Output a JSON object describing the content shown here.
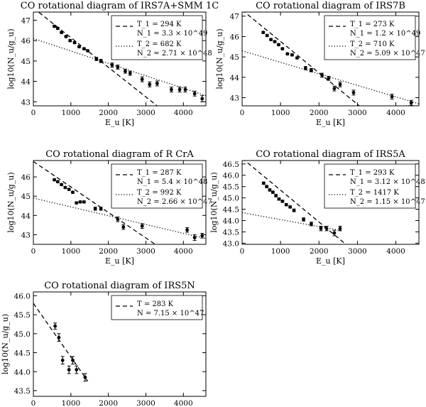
{
  "chart_data": [
    {
      "type": "scatter",
      "title": "CO rotational diagram of IRS7A+SMM 1C",
      "xlabel": "E_u [K]",
      "ylabel": "log10(N_u/g_u)",
      "xlim": [
        0,
        4600
      ],
      "ylim": [
        42.8,
        47.4
      ],
      "xticks": [
        0,
        1000,
        2000,
        3000,
        4000
      ],
      "yticks": [
        43,
        44,
        45,
        46,
        47
      ],
      "legend": [
        {
          "style": "dashed",
          "temp": "T_1 = 294 K",
          "N": "N_1 = 3.3 × 10^49"
        },
        {
          "style": "dotted",
          "temp": "T_2 = 682 K",
          "N": "N_2 = 2.71 × 10^48"
        }
      ],
      "fits": [
        {
          "style": "dashed",
          "x": [
            0,
            3300
          ],
          "y": [
            47.6,
            42.8
          ]
        },
        {
          "style": "dotted",
          "x": [
            0,
            4600
          ],
          "y": [
            46.1,
            43.3
          ]
        }
      ],
      "points": [
        {
          "x": 560,
          "y": 46.7,
          "err": 0.05
        },
        {
          "x": 650,
          "y": 46.6,
          "err": 0.05
        },
        {
          "x": 750,
          "y": 46.4,
          "err": 0.05
        },
        {
          "x": 870,
          "y": 46.2,
          "err": 0.05
        },
        {
          "x": 980,
          "y": 46.0,
          "err": 0.05
        },
        {
          "x": 1100,
          "y": 45.9,
          "err": 0.05
        },
        {
          "x": 1220,
          "y": 45.7,
          "err": 0.05
        },
        {
          "x": 1350,
          "y": 45.6,
          "err": 0.05
        },
        {
          "x": 1450,
          "y": 45.5,
          "err": 0.05
        },
        {
          "x": 1680,
          "y": 45.1,
          "err": 0.08
        },
        {
          "x": 1800,
          "y": 45.0,
          "err": 0.08
        },
        {
          "x": 2100,
          "y": 44.8,
          "err": 0.1
        },
        {
          "x": 2250,
          "y": 44.7,
          "err": 0.1
        },
        {
          "x": 2450,
          "y": 44.5,
          "err": 0.1
        },
        {
          "x": 2580,
          "y": 44.4,
          "err": 0.1
        },
        {
          "x": 2900,
          "y": 44.1,
          "err": 0.12
        },
        {
          "x": 3100,
          "y": 43.85,
          "err": 0.12
        },
        {
          "x": 3300,
          "y": 43.9,
          "err": 0.12
        },
        {
          "x": 3680,
          "y": 43.6,
          "err": 0.12
        },
        {
          "x": 3900,
          "y": 43.6,
          "err": 0.12
        },
        {
          "x": 4050,
          "y": 43.6,
          "err": 0.12
        },
        {
          "x": 4300,
          "y": 43.4,
          "err": 0.12
        },
        {
          "x": 4500,
          "y": 43.15,
          "err": 0.15
        }
      ]
    },
    {
      "type": "scatter",
      "title": "CO rotational diagram of IRS7B",
      "xlabel": "E_u [K]",
      "ylabel": "log10(N_u/g_u)",
      "xlim": [
        0,
        4600
      ],
      "ylim": [
        42.6,
        47.2
      ],
      "xticks": [
        0,
        1000,
        2000,
        3000,
        4000
      ],
      "yticks": [
        43,
        44,
        45,
        46,
        47
      ],
      "legend": [
        {
          "style": "dashed",
          "temp": "T_1 = 273 K",
          "N": "N_1 = 1.2 × 10^49"
        },
        {
          "style": "dotted",
          "temp": "T_2 = 710 K",
          "N": "N_2 = 5.09 × 10^47"
        }
      ],
      "fits": [
        {
          "style": "dashed",
          "x": [
            0,
            3050
          ],
          "y": [
            47.3,
            42.6
          ]
        },
        {
          "style": "dotted",
          "x": [
            0,
            4600
          ],
          "y": [
            45.3,
            42.7
          ]
        }
      ],
      "points": [
        {
          "x": 550,
          "y": 46.2,
          "err": 0.05
        },
        {
          "x": 650,
          "y": 46.05,
          "err": 0.05
        },
        {
          "x": 750,
          "y": 45.85,
          "err": 0.05
        },
        {
          "x": 850,
          "y": 45.75,
          "err": 0.05
        },
        {
          "x": 950,
          "y": 45.6,
          "err": 0.05
        },
        {
          "x": 1050,
          "y": 45.4,
          "err": 0.05
        },
        {
          "x": 1180,
          "y": 45.15,
          "err": 0.05
        },
        {
          "x": 1300,
          "y": 45.1,
          "err": 0.05
        },
        {
          "x": 1430,
          "y": 44.95,
          "err": 0.05
        },
        {
          "x": 1650,
          "y": 44.45,
          "err": 0.08
        },
        {
          "x": 1800,
          "y": 44.35,
          "err": 0.08
        },
        {
          "x": 2080,
          "y": 44.1,
          "err": 0.1
        },
        {
          "x": 2250,
          "y": 43.95,
          "err": 0.1
        },
        {
          "x": 2400,
          "y": 43.45,
          "err": 0.12
        },
        {
          "x": 2550,
          "y": 43.65,
          "err": 0.12
        },
        {
          "x": 2900,
          "y": 43.25,
          "err": 0.12
        },
        {
          "x": 3900,
          "y": 43.05,
          "err": 0.12
        },
        {
          "x": 4400,
          "y": 42.75,
          "err": 0.12
        }
      ]
    },
    {
      "type": "scatter",
      "title": "CO rotational diagram of R CrA",
      "xlabel": "E_u [K]",
      "ylabel": "log10(N_u/g_u)",
      "xlim": [
        0,
        4600
      ],
      "ylim": [
        42.5,
        46.85
      ],
      "xticks": [
        0,
        1000,
        2000,
        3000,
        4000
      ],
      "yticks": [
        43,
        44,
        45,
        46
      ],
      "legend": [
        {
          "style": "dashed",
          "temp": "T_1 = 287 K",
          "N": "N_1 = 5.4 × 10^48"
        },
        {
          "style": "dotted",
          "temp": "T_2 = 992 K",
          "N": "N_2 = 2.66 × 10^47"
        }
      ],
      "fits": [
        {
          "style": "dashed",
          "x": [
            0,
            3250
          ],
          "y": [
            46.8,
            42.5
          ]
        },
        {
          "style": "dotted",
          "x": [
            0,
            4600
          ],
          "y": [
            44.9,
            42.8
          ]
        }
      ],
      "points": [
        {
          "x": 560,
          "y": 45.85,
          "err": 0.05
        },
        {
          "x": 650,
          "y": 45.75,
          "err": 0.05
        },
        {
          "x": 750,
          "y": 45.6,
          "err": 0.05
        },
        {
          "x": 850,
          "y": 45.45,
          "err": 0.05
        },
        {
          "x": 950,
          "y": 45.35,
          "err": 0.05
        },
        {
          "x": 1050,
          "y": 45.2,
          "err": 0.05
        },
        {
          "x": 1150,
          "y": 44.65,
          "err": 0.05
        },
        {
          "x": 1250,
          "y": 44.7,
          "err": 0.05
        },
        {
          "x": 1350,
          "y": 44.7,
          "err": 0.05
        },
        {
          "x": 1650,
          "y": 44.35,
          "err": 0.08
        },
        {
          "x": 1800,
          "y": 44.35,
          "err": 0.08
        },
        {
          "x": 2250,
          "y": 43.8,
          "err": 0.12
        },
        {
          "x": 2400,
          "y": 43.4,
          "err": 0.12
        },
        {
          "x": 2900,
          "y": 43.45,
          "err": 0.12
        },
        {
          "x": 4100,
          "y": 43.25,
          "err": 0.12
        },
        {
          "x": 4300,
          "y": 42.85,
          "err": 0.15
        },
        {
          "x": 4500,
          "y": 42.95,
          "err": 0.12
        }
      ]
    },
    {
      "type": "scatter",
      "title": "CO rotational diagram of IRS5A",
      "xlabel": "E_u [K]",
      "ylabel": "log10(N_u/g_u)",
      "xlim": [
        0,
        4600
      ],
      "ylim": [
        42.95,
        46.65
      ],
      "xticks": [
        0,
        1000,
        2000,
        3000,
        4000
      ],
      "yticks": [
        43.0,
        43.5,
        44.0,
        44.5,
        45.0,
        45.5,
        46.0,
        46.5
      ],
      "legend": [
        {
          "style": "dashed",
          "temp": "T_1 = 293 K",
          "N": "N_1 = 3.12 × 10^48"
        },
        {
          "style": "dotted",
          "temp": "T_2 = 1417 K",
          "N": "N_2 = 1.15 × 10^47"
        }
      ],
      "fits": [
        {
          "style": "dashed",
          "x": [
            0,
            2700
          ],
          "y": [
            46.75,
            42.95
          ]
        },
        {
          "style": "dotted",
          "x": [
            0,
            2600
          ],
          "y": [
            44.35,
            43.55
          ]
        }
      ],
      "points": [
        {
          "x": 560,
          "y": 45.65,
          "err": 0.05
        },
        {
          "x": 640,
          "y": 45.5,
          "err": 0.05
        },
        {
          "x": 720,
          "y": 45.35,
          "err": 0.05
        },
        {
          "x": 800,
          "y": 45.25,
          "err": 0.05
        },
        {
          "x": 880,
          "y": 45.1,
          "err": 0.05
        },
        {
          "x": 960,
          "y": 44.95,
          "err": 0.05
        },
        {
          "x": 1050,
          "y": 44.85,
          "err": 0.05
        },
        {
          "x": 1150,
          "y": 44.7,
          "err": 0.05
        },
        {
          "x": 1250,
          "y": 44.6,
          "err": 0.05
        },
        {
          "x": 1350,
          "y": 44.45,
          "err": 0.06
        },
        {
          "x": 1600,
          "y": 44.05,
          "err": 0.07
        },
        {
          "x": 1800,
          "y": 43.85,
          "err": 0.08
        },
        {
          "x": 2050,
          "y": 43.65,
          "err": 0.1
        },
        {
          "x": 2200,
          "y": 43.65,
          "err": 0.1
        },
        {
          "x": 2400,
          "y": 43.45,
          "err": 0.12
        },
        {
          "x": 2550,
          "y": 43.65,
          "err": 0.1
        }
      ]
    },
    {
      "type": "scatter",
      "title": "CO rotational diagram of IRS5N",
      "xlabel": "E_u [K]",
      "ylabel": "log10(N_u/g_u)",
      "xlim": [
        0,
        4600
      ],
      "ylim": [
        43.35,
        46.1
      ],
      "xticks": [
        0,
        1000,
        2000,
        3000,
        4000
      ],
      "yticks": [
        43.5,
        44.0,
        44.5,
        45.0,
        45.5,
        46.0
      ],
      "legend": [
        {
          "style": "dashed",
          "temp": "T = 283 K",
          "N": "N = 7.15 × 10^47"
        }
      ],
      "fits": [
        {
          "style": "dashed",
          "x": [
            0,
            1450
          ],
          "y": [
            45.8,
            43.75
          ]
        }
      ],
      "points": [
        {
          "x": 580,
          "y": 45.2,
          "err": 0.08
        },
        {
          "x": 680,
          "y": 44.9,
          "err": 0.1
        },
        {
          "x": 780,
          "y": 44.3,
          "err": 0.1
        },
        {
          "x": 950,
          "y": 44.05,
          "err": 0.1
        },
        {
          "x": 1050,
          "y": 44.3,
          "err": 0.1
        },
        {
          "x": 1150,
          "y": 44.05,
          "err": 0.1
        },
        {
          "x": 1380,
          "y": 43.85,
          "err": 0.1
        }
      ]
    }
  ]
}
